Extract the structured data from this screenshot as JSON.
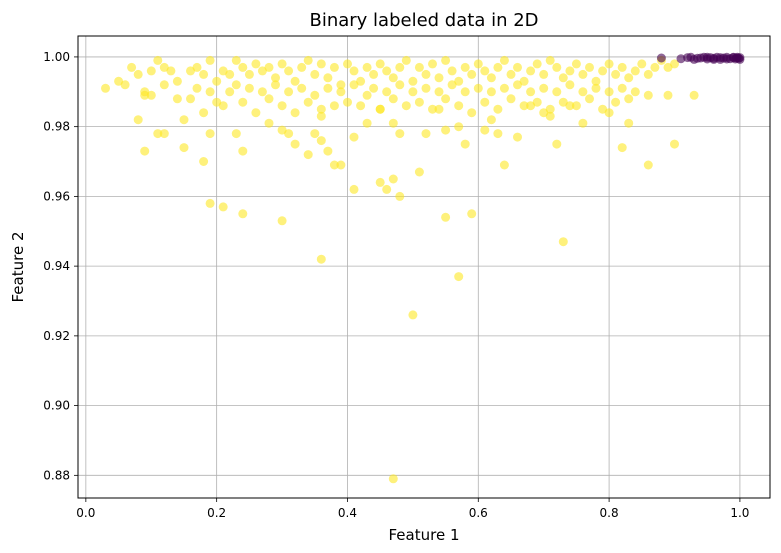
{
  "chart_data": {
    "type": "scatter",
    "title": "Binary labeled data in 2D",
    "xlabel": "Feature 1",
    "ylabel": "Feature 2",
    "xlim": [
      -0.012,
      1.046
    ],
    "ylim": [
      0.8735,
      1.006
    ],
    "xticks": [
      0.0,
      0.2,
      0.4,
      0.6,
      0.8,
      1.0
    ],
    "xtick_labels": [
      "0.0",
      "0.2",
      "0.4",
      "0.6",
      "0.8",
      "1.0"
    ],
    "yticks": [
      0.88,
      0.9,
      0.92,
      0.94,
      0.96,
      0.98,
      1.0
    ],
    "ytick_labels": [
      "0.88",
      "0.90",
      "0.92",
      "0.94",
      "0.96",
      "0.98",
      "1.00"
    ],
    "grid": true,
    "marker_alpha": 0.6,
    "series": [
      {
        "color": "#fde725",
        "points": [
          [
            0.03,
            0.991
          ],
          [
            0.05,
            0.993
          ],
          [
            0.07,
            0.997
          ],
          [
            0.08,
            0.995
          ],
          [
            0.09,
            0.989
          ],
          [
            0.1,
            0.996
          ],
          [
            0.11,
            0.999
          ],
          [
            0.12,
            0.997
          ],
          [
            0.13,
            0.996
          ],
          [
            0.14,
            0.993
          ],
          [
            0.16,
            0.996
          ],
          [
            0.17,
            0.997
          ],
          [
            0.18,
            0.995
          ],
          [
            0.19,
            0.999
          ],
          [
            0.2,
            0.993
          ],
          [
            0.21,
            0.996
          ],
          [
            0.22,
            0.995
          ],
          [
            0.23,
            0.999
          ],
          [
            0.24,
            0.997
          ],
          [
            0.25,
            0.995
          ],
          [
            0.26,
            0.998
          ],
          [
            0.27,
            0.996
          ],
          [
            0.28,
            0.997
          ],
          [
            0.29,
            0.994
          ],
          [
            0.3,
            0.998
          ],
          [
            0.31,
            0.996
          ],
          [
            0.32,
            0.993
          ],
          [
            0.33,
            0.997
          ],
          [
            0.34,
            0.999
          ],
          [
            0.35,
            0.995
          ],
          [
            0.36,
            0.998
          ],
          [
            0.37,
            0.994
          ],
          [
            0.38,
            0.997
          ],
          [
            0.39,
            0.992
          ],
          [
            0.4,
            0.998
          ],
          [
            0.41,
            0.996
          ],
          [
            0.42,
            0.993
          ],
          [
            0.43,
            0.997
          ],
          [
            0.44,
            0.995
          ],
          [
            0.45,
            0.998
          ],
          [
            0.46,
            0.996
          ],
          [
            0.47,
            0.994
          ],
          [
            0.48,
            0.997
          ],
          [
            0.49,
            0.999
          ],
          [
            0.5,
            0.993
          ],
          [
            0.51,
            0.997
          ],
          [
            0.52,
            0.995
          ],
          [
            0.53,
            0.998
          ],
          [
            0.54,
            0.994
          ],
          [
            0.55,
            0.999
          ],
          [
            0.56,
            0.996
          ],
          [
            0.57,
            0.993
          ],
          [
            0.58,
            0.997
          ],
          [
            0.59,
            0.995
          ],
          [
            0.6,
            0.998
          ],
          [
            0.61,
            0.996
          ],
          [
            0.62,
            0.994
          ],
          [
            0.63,
            0.997
          ],
          [
            0.64,
            0.999
          ],
          [
            0.65,
            0.995
          ],
          [
            0.66,
            0.997
          ],
          [
            0.67,
            0.993
          ],
          [
            0.68,
            0.996
          ],
          [
            0.69,
            0.998
          ],
          [
            0.7,
            0.995
          ],
          [
            0.71,
            0.999
          ],
          [
            0.72,
            0.997
          ],
          [
            0.73,
            0.994
          ],
          [
            0.74,
            0.996
          ],
          [
            0.75,
            0.998
          ],
          [
            0.76,
            0.995
          ],
          [
            0.77,
            0.997
          ],
          [
            0.78,
            0.993
          ],
          [
            0.79,
            0.996
          ],
          [
            0.8,
            0.998
          ],
          [
            0.81,
            0.995
          ],
          [
            0.82,
            0.997
          ],
          [
            0.83,
            0.994
          ],
          [
            0.84,
            0.996
          ],
          [
            0.85,
            0.998
          ],
          [
            0.86,
            0.995
          ],
          [
            0.87,
            0.997
          ],
          [
            0.88,
            0.999
          ],
          [
            0.89,
            0.997
          ],
          [
            0.9,
            0.998
          ],
          [
            0.06,
            0.992
          ],
          [
            0.08,
            0.982
          ],
          [
            0.09,
            0.99
          ],
          [
            0.1,
            0.989
          ],
          [
            0.11,
            0.978
          ],
          [
            0.12,
            0.992
          ],
          [
            0.14,
            0.988
          ],
          [
            0.15,
            0.982
          ],
          [
            0.16,
            0.988
          ],
          [
            0.17,
            0.991
          ],
          [
            0.18,
            0.984
          ],
          [
            0.19,
            0.99
          ],
          [
            0.2,
            0.987
          ],
          [
            0.21,
            0.986
          ],
          [
            0.22,
            0.99
          ],
          [
            0.23,
            0.992
          ],
          [
            0.24,
            0.987
          ],
          [
            0.25,
            0.991
          ],
          [
            0.26,
            0.984
          ],
          [
            0.27,
            0.99
          ],
          [
            0.28,
            0.988
          ],
          [
            0.29,
            0.992
          ],
          [
            0.3,
            0.986
          ],
          [
            0.31,
            0.99
          ],
          [
            0.32,
            0.984
          ],
          [
            0.33,
            0.991
          ],
          [
            0.34,
            0.987
          ],
          [
            0.35,
            0.989
          ],
          [
            0.36,
            0.983
          ],
          [
            0.37,
            0.991
          ],
          [
            0.38,
            0.986
          ],
          [
            0.39,
            0.99
          ],
          [
            0.4,
            0.987
          ],
          [
            0.41,
            0.992
          ],
          [
            0.42,
            0.986
          ],
          [
            0.43,
            0.989
          ],
          [
            0.44,
            0.991
          ],
          [
            0.45,
            0.985
          ],
          [
            0.46,
            0.99
          ],
          [
            0.47,
            0.988
          ],
          [
            0.48,
            0.992
          ],
          [
            0.49,
            0.986
          ],
          [
            0.5,
            0.99
          ],
          [
            0.51,
            0.987
          ],
          [
            0.52,
            0.991
          ],
          [
            0.53,
            0.985
          ],
          [
            0.54,
            0.99
          ],
          [
            0.55,
            0.988
          ],
          [
            0.56,
            0.992
          ],
          [
            0.57,
            0.986
          ],
          [
            0.58,
            0.99
          ],
          [
            0.59,
            0.984
          ],
          [
            0.6,
            0.991
          ],
          [
            0.61,
            0.987
          ],
          [
            0.62,
            0.99
          ],
          [
            0.63,
            0.985
          ],
          [
            0.64,
            0.991
          ],
          [
            0.65,
            0.988
          ],
          [
            0.66,
            0.992
          ],
          [
            0.67,
            0.986
          ],
          [
            0.68,
            0.99
          ],
          [
            0.69,
            0.987
          ],
          [
            0.7,
            0.991
          ],
          [
            0.71,
            0.985
          ],
          [
            0.72,
            0.99
          ],
          [
            0.73,
            0.987
          ],
          [
            0.74,
            0.992
          ],
          [
            0.75,
            0.986
          ],
          [
            0.76,
            0.99
          ],
          [
            0.77,
            0.988
          ],
          [
            0.78,
            0.991
          ],
          [
            0.79,
            0.985
          ],
          [
            0.8,
            0.99
          ],
          [
            0.81,
            0.987
          ],
          [
            0.82,
            0.991
          ],
          [
            0.83,
            0.988
          ],
          [
            0.84,
            0.99
          ],
          [
            0.86,
            0.989
          ],
          [
            0.89,
            0.989
          ],
          [
            0.93,
            0.989
          ],
          [
            0.09,
            0.973
          ],
          [
            0.12,
            0.978
          ],
          [
            0.15,
            0.974
          ],
          [
            0.18,
            0.97
          ],
          [
            0.19,
            0.978
          ],
          [
            0.23,
            0.978
          ],
          [
            0.24,
            0.973
          ],
          [
            0.28,
            0.981
          ],
          [
            0.3,
            0.979
          ],
          [
            0.31,
            0.978
          ],
          [
            0.32,
            0.975
          ],
          [
            0.34,
            0.972
          ],
          [
            0.35,
            0.978
          ],
          [
            0.36,
            0.976
          ],
          [
            0.37,
            0.973
          ],
          [
            0.38,
            0.969
          ],
          [
            0.39,
            0.969
          ],
          [
            0.41,
            0.977
          ],
          [
            0.43,
            0.981
          ],
          [
            0.45,
            0.985
          ],
          [
            0.47,
            0.981
          ],
          [
            0.52,
            0.978
          ],
          [
            0.55,
            0.979
          ],
          [
            0.57,
            0.98
          ],
          [
            0.58,
            0.975
          ],
          [
            0.61,
            0.979
          ],
          [
            0.62,
            0.982
          ],
          [
            0.63,
            0.978
          ],
          [
            0.64,
            0.969
          ],
          [
            0.66,
            0.977
          ],
          [
            0.68,
            0.986
          ],
          [
            0.7,
            0.984
          ],
          [
            0.71,
            0.983
          ],
          [
            0.72,
            0.975
          ],
          [
            0.74,
            0.986
          ],
          [
            0.76,
            0.981
          ],
          [
            0.8,
            0.984
          ],
          [
            0.82,
            0.974
          ],
          [
            0.83,
            0.981
          ],
          [
            0.86,
            0.969
          ],
          [
            0.9,
            0.975
          ],
          [
            0.54,
            0.985
          ],
          [
            0.48,
            0.978
          ],
          [
            0.36,
            0.985
          ],
          [
            0.19,
            0.958
          ],
          [
            0.21,
            0.957
          ],
          [
            0.24,
            0.955
          ],
          [
            0.3,
            0.953
          ],
          [
            0.36,
            0.942
          ],
          [
            0.41,
            0.962
          ],
          [
            0.45,
            0.964
          ],
          [
            0.46,
            0.962
          ],
          [
            0.47,
            0.965
          ],
          [
            0.48,
            0.96
          ],
          [
            0.5,
            0.926
          ],
          [
            0.51,
            0.967
          ],
          [
            0.55,
            0.954
          ],
          [
            0.57,
            0.937
          ],
          [
            0.59,
            0.955
          ],
          [
            0.73,
            0.947
          ],
          [
            0.47,
            0.879
          ]
        ]
      },
      {
        "color": "#440154",
        "points": [
          [
            0.88,
            0.9997
          ],
          [
            0.91,
            0.9995
          ],
          [
            0.92,
            0.9998
          ],
          [
            0.93,
            0.9993
          ],
          [
            0.94,
            0.9997
          ],
          [
            0.945,
            0.9999
          ],
          [
            0.95,
            0.9994
          ],
          [
            0.955,
            0.9998
          ],
          [
            0.96,
            0.9996
          ],
          [
            0.965,
            0.9999
          ],
          [
            0.97,
            0.9993
          ],
          [
            0.975,
            0.9997
          ],
          [
            0.98,
            0.9999
          ],
          [
            0.985,
            0.9995
          ],
          [
            0.99,
            0.9998
          ],
          [
            0.993,
            0.9994
          ],
          [
            0.996,
            0.9999
          ],
          [
            0.998,
            0.9996
          ],
          [
            1.0,
            0.9998
          ],
          [
            1.0,
            0.9993
          ],
          [
            0.925,
            0.9999
          ],
          [
            0.935,
            0.9996
          ],
          [
            0.95,
            0.9999
          ],
          [
            0.96,
            0.9993
          ],
          [
            0.97,
            0.9998
          ],
          [
            0.98,
            0.9994
          ],
          [
            0.99,
            0.9999
          ],
          [
            0.995,
            0.9997
          ]
        ]
      }
    ]
  }
}
